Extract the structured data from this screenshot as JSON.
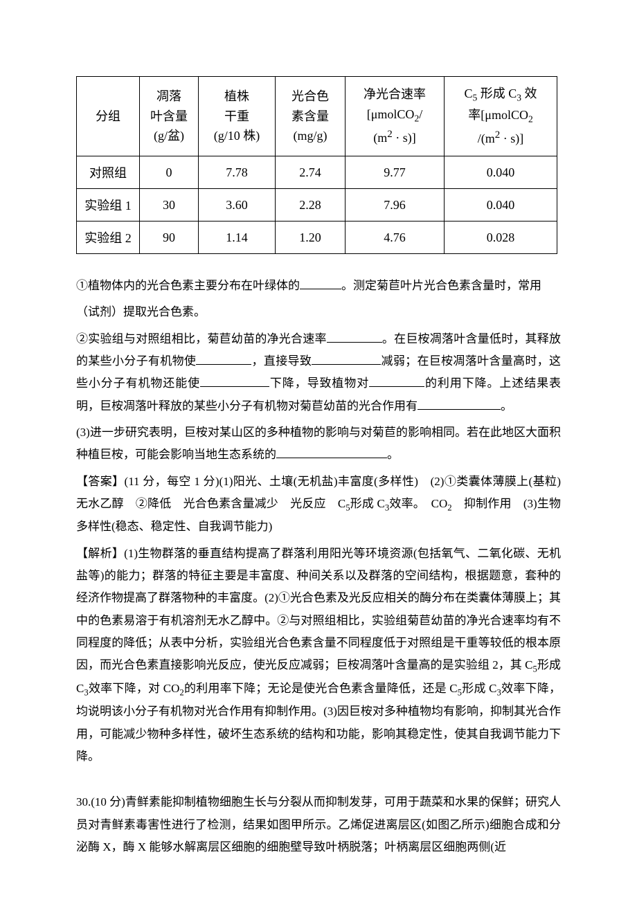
{
  "table": {
    "columns": [
      "分组",
      "凋落<br>叶含量<br>(g/盆)",
      "植株<br>干重<br>(g/10 株)",
      "光合色<br>素含量<br>(mg/g)",
      "净光合速率<br>[μmolCO<sub>2</sub>/<br>(m<sup>2</sup> · s)]",
      "C<sub>5</sub> 形成 C<sub>3</sub> 效<br>率[μmolCO<sub>2</sub><br>/(m<sup>2</sup> · s)]"
    ],
    "col_widths": [
      "col0",
      "col1",
      "col2",
      "col3",
      "col4",
      "col5"
    ],
    "rows": [
      [
        "对照组",
        "0",
        "7.78",
        "2.74",
        "9.77",
        "0.040"
      ],
      [
        "实验组 1",
        "30",
        "3.60",
        "2.28",
        "7.96",
        "0.040"
      ],
      [
        "实验组 2",
        "90",
        "1.14",
        "1.20",
        "4.76",
        "0.028"
      ]
    ],
    "border_color": "#000000",
    "background_color": "#ffffff",
    "header_font_size": 18,
    "cell_font_size": 18
  },
  "q1_pre": "①植物体内的光合色素主要分布在叶绿体的",
  "q1_post": "。测定菊苣叶片光合色素含量时，常用",
  "q1_tail": "（试剂）提取光合色素。",
  "q2a": "②实验组与对照组相比，菊苣幼苗的净光合速率",
  "q2b": "。在巨桉凋落叶含量低时，其释放的某些小分子有机物使",
  "q2c": "，直接导致",
  "q2d": "减弱；在巨桉凋落叶含量高时，这些小分子有机物还能使",
  "q2e": "下降，导致植物对",
  "q2f": "的利用下降。上述结果表明，巨桉凋落叶释放的某些小分子有机物对菊苣幼苗的光合作用有",
  "q2g": "。",
  "q3a": "(3)进一步研究表明，巨桉对某山区的多种植物的影响与对菊苣的影响相同。若在此地区大面积种植巨桉，可能会影响当地生态系统的",
  "q3b": "。",
  "ans_label": "【答案】",
  "ans_body": "(11 分，每空 1 分)(1)阳光、土壤(无机盐)丰富度(多样性)　(2)①类囊体薄膜上(基粒)　无水乙醇　②降低　光合色素含量减少　光反应　C<sub>5</sub>形成 C<sub>3</sub>效率。　CO<sub>2</sub>　抑制作用　(3)生物多样性(稳态、稳定性、自我调节能力)",
  "exp_label": "【解析】",
  "exp_body": "(1)生物群落的垂直结构提高了群落利用阳光等环境资源(包括氧气、二氧化碳、无机盐等)的能力；群落的特征主要是丰富度、种间关系以及群落的空间结构，根据题意，套种的经济作物提高了群落物种的丰富度。(2)①光合色素及光反应相关的酶分布在类囊体薄膜上；其中的色素易溶于有机溶剂无水乙醇中。②与对照组相比，实验组菊苣幼苗的净光合速率均有不同程度的降低；从表中分析，实验组光合色素含量不同程度低于对照组是干重等较低的根本原因，而光合色素直接影响光反应，使光反应减弱；巨桉凋落叶含量高的是实验组 2，其 C<sub>5</sub>形成 C<sub>3</sub>效率下降，对 CO<sub>2</sub>的利用率下降；无论是使光合色素含量降低，还是 C<sub>5</sub>形成 C<sub>3</sub>效率下降，均说明该小分子有机物对光合作用有抑制作用。(3)因巨桉对多种植物均有影响，抑制其光合作用，可能减少物种多样性，破坏生态系统的结构和功能，影响其稳定性，使其自我调节能力下降。",
  "q30": "30.(10 分)青鲜素能抑制植物细胞生长与分裂从而抑制发芽，可用于蔬菜和水果的保鲜；研究人员对青鲜素毒害性进行了检测，结果如图甲所示。乙烯促进离层区(如图乙所示)细胞合成和分泌酶 X，酶 X 能够水解离层区细胞的细胞壁导致叶柄脱落；叶柄离层区细胞两侧(近"
}
